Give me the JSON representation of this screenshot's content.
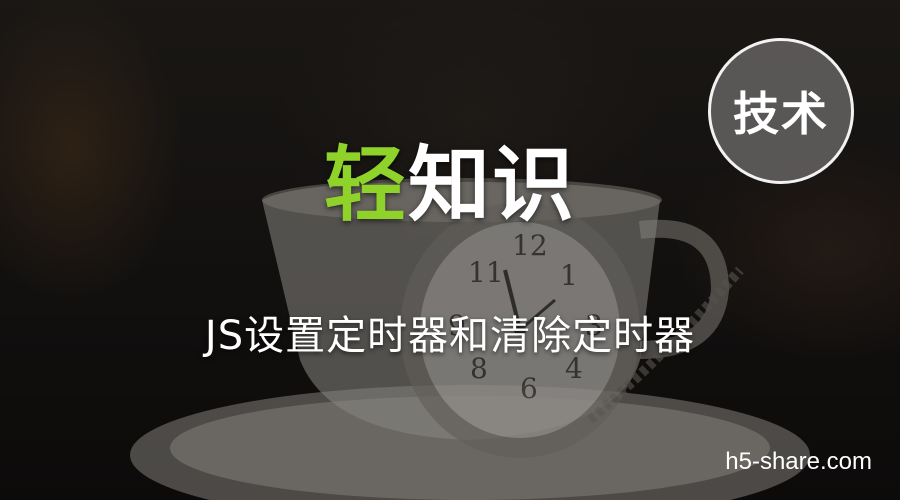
{
  "badge": {
    "label": "技术",
    "border_color": "#f2f2f2",
    "fill_color": "#5f5c5c"
  },
  "title": {
    "accent": "轻",
    "rest": "知识",
    "accent_color": "#8fd22a"
  },
  "subtitle": "JS设置定时器和清除定时器",
  "watermark": "h5-share.com",
  "background": {
    "description_icon": "teacup-and-pocket-watch-photo"
  }
}
